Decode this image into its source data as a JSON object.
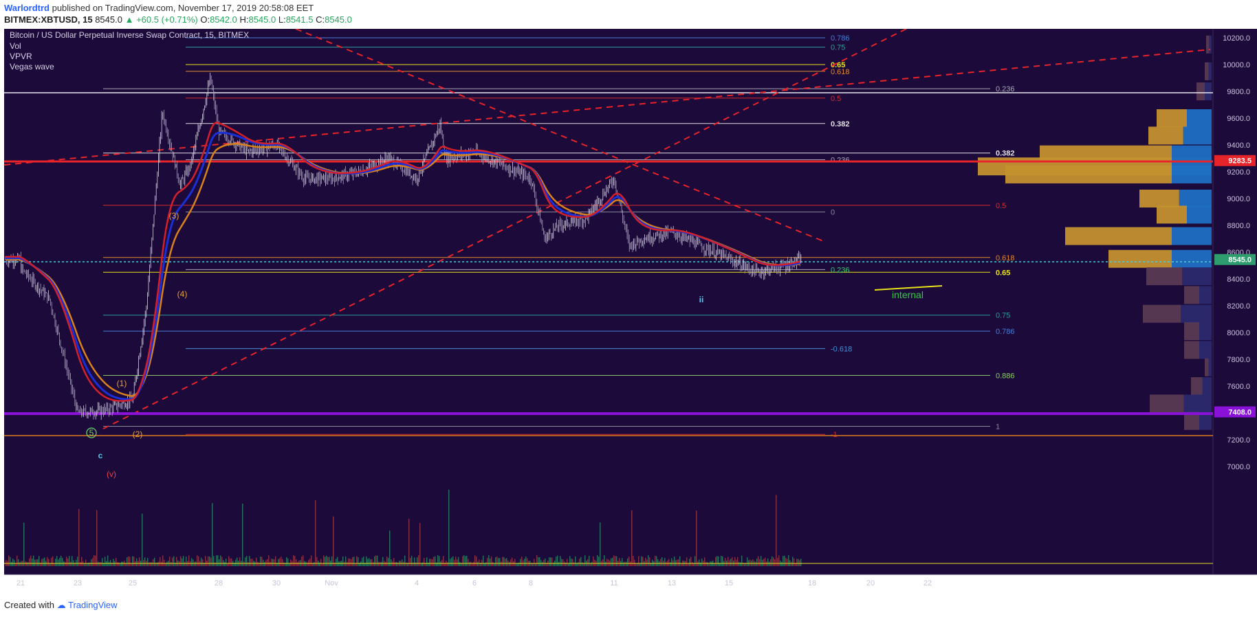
{
  "header": {
    "author": "Warlordtrd",
    "published_text": "published on TradingView.com, November 17, 2019 20:58:08 EET",
    "symbol": "BITMEX:XBTUSD, 15",
    "last": "8545.0",
    "change": "+60.5 (+0.71%)",
    "o_label": "O:",
    "o_value": "8542.0",
    "h_label": "H:",
    "h_value": "8545.0",
    "l_label": "L:",
    "l_value": "8541.5",
    "c_label": "C:",
    "c_value": "8545.0"
  },
  "footer": {
    "created_with": "Created with",
    "brand": "TradingView"
  },
  "colors": {
    "background": "#1c0a3a",
    "candle": "#c9c3d6",
    "ema_red": "#d4202a",
    "ema_blue": "#1b2fd6",
    "ema_orange": "#d9821e",
    "trend_dashed": "#e8242b",
    "vp_gold": "#c4912f",
    "vp_blue": "#1f6fc2",
    "price_tag_green": "#2e9e6e",
    "price_tag_red": "#e8242b",
    "purple_line": "#8a12d8"
  },
  "chart_data": {
    "type": "candlestick",
    "title": "Bitcoin / US Dollar Perpetual Inverse Swap Contract, 15, BITMEX",
    "indicators": [
      "Vol",
      "VPVR",
      "Vegas wave"
    ],
    "x_ticks": [
      "21",
      "23",
      "25",
      "28",
      "30",
      "Nov",
      "4",
      "6",
      "8",
      "11",
      "13",
      "15",
      "18",
      "20",
      "22"
    ],
    "y_ticks": [
      "10200.0",
      "10000.0",
      "9800.0",
      "9600.0",
      "9400.0",
      "9200.0",
      "9000.0",
      "8800.0",
      "8600.0",
      "8400.0",
      "8200.0",
      "8000.0",
      "7800.0",
      "7600.0",
      "7200.0",
      "7000.0"
    ],
    "ylim": [
      6840,
      10300
    ],
    "price_path": [
      [
        "21",
        8480
      ],
      [
        "22",
        8250
      ],
      [
        "23",
        7400
      ],
      [
        "24",
        7420
      ],
      [
        "25",
        7500
      ],
      [
        "25.5",
        8200
      ],
      [
        "26",
        9650
      ],
      [
        "26.5",
        9100
      ],
      [
        "27",
        9250
      ],
      [
        "27.7",
        9900
      ],
      [
        "28",
        9500
      ],
      [
        "29",
        9350
      ],
      [
        "30",
        9400
      ],
      [
        "31",
        9150
      ],
      [
        "Nov",
        9150
      ],
      [
        "2",
        9200
      ],
      [
        "3",
        9300
      ],
      [
        "4",
        9150
      ],
      [
        "4.8",
        9550
      ],
      [
        "5",
        9300
      ],
      [
        "6",
        9350
      ],
      [
        "7",
        9250
      ],
      [
        "8",
        9150
      ],
      [
        "8.5",
        8700
      ],
      [
        "9",
        8800
      ],
      [
        "10",
        8850
      ],
      [
        "11",
        9150
      ],
      [
        "11.5",
        8650
      ],
      [
        "12",
        8700
      ],
      [
        "13",
        8750
      ],
      [
        "14",
        8650
      ],
      [
        "15",
        8550
      ],
      [
        "15.5",
        8500
      ],
      [
        "16",
        8450
      ],
      [
        "17",
        8500
      ],
      [
        "17.5",
        8545
      ]
    ],
    "price_tags": [
      {
        "value": "9283.5",
        "color": "red"
      },
      {
        "value": "8545.0",
        "color": "green"
      },
      {
        "value": "7408.0",
        "color": "purple"
      }
    ],
    "fib_levels_a": [
      {
        "label": "0.786",
        "price": 10200
      },
      {
        "label": "0.75",
        "price": 10130
      },
      {
        "label": "0.65",
        "price": 10000
      },
      {
        "label": "0.618",
        "price": 9950
      },
      {
        "label": "0.5",
        "price": 9750
      },
      {
        "label": "0.382",
        "price": 9560
      },
      {
        "label": "0.236",
        "price": 9290
      },
      {
        "label": "0",
        "price": 8900
      }
    ],
    "fib_levels_b": [
      {
        "label": "0.236",
        "price": 9820
      },
      {
        "label": "0.382",
        "price": 9340
      },
      {
        "label": "0.5",
        "price": 8950
      },
      {
        "label": "0.618",
        "price": 8560
      },
      {
        "label": "0.65",
        "price": 8450
      },
      {
        "label": "0.75",
        "price": 8130
      },
      {
        "label": "0.786",
        "price": 8010
      },
      {
        "label": "0.886",
        "price": 7680
      },
      {
        "label": "1",
        "price": 7300
      }
    ],
    "fib_levels_c": [
      {
        "label": "-0.618",
        "price": 7880
      },
      {
        "label": "0.236",
        "price": 8470
      },
      {
        "label": "-1",
        "price": 7240
      }
    ],
    "annotations": [
      "(3)",
      "(4)",
      "(1)",
      "(2)",
      "5",
      "c",
      "(v)",
      "ii",
      "internal"
    ],
    "vpvr": [
      {
        "price": 10150,
        "vol": 8
      },
      {
        "price": 9950,
        "vol": 10
      },
      {
        "price": 9800,
        "vol": 22
      },
      {
        "price": 9600,
        "vol": 80
      },
      {
        "price": 9470,
        "vol": 92
      },
      {
        "price": 9330,
        "vol": 250
      },
      {
        "price": 9240,
        "vol": 340
      },
      {
        "price": 9180,
        "vol": 300
      },
      {
        "price": 9000,
        "vol": 105
      },
      {
        "price": 8880,
        "vol": 80
      },
      {
        "price": 8720,
        "vol": 213
      },
      {
        "price": 8550,
        "vol": 150
      },
      {
        "price": 8420,
        "vol": 95
      },
      {
        "price": 8280,
        "vol": 40
      },
      {
        "price": 8140,
        "vol": 100
      },
      {
        "price": 8010,
        "vol": 40
      },
      {
        "price": 7870,
        "vol": 40
      },
      {
        "price": 7740,
        "vol": 10
      },
      {
        "price": 7600,
        "vol": 30
      },
      {
        "price": 7470,
        "vol": 90
      },
      {
        "price": 7340,
        "vol": 40
      }
    ]
  }
}
